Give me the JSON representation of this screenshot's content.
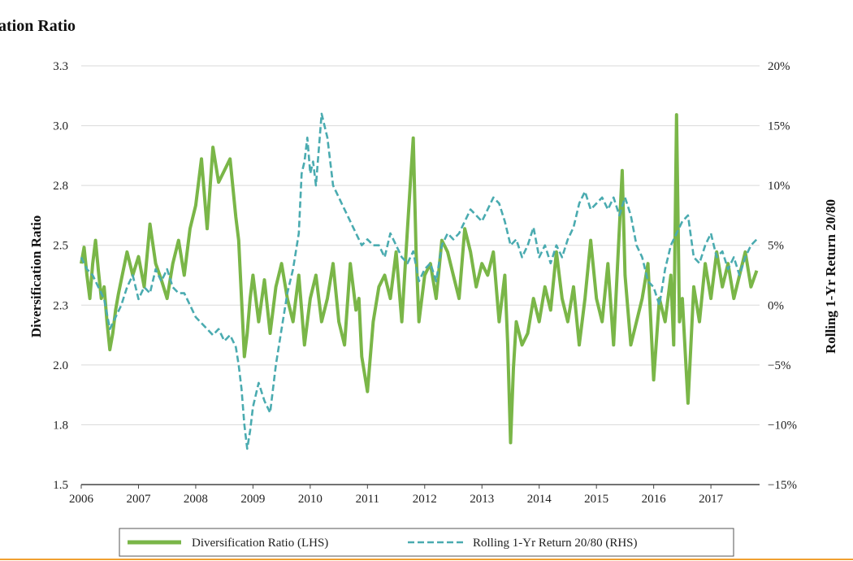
{
  "chart_data": {
    "type": "line",
    "title": "ation Ratio",
    "ylabel_left": "Diversification Ratio",
    "ylabel_right": "Rolling 1-Yr Return 20/80",
    "x_ticks": [
      "2006",
      "2007",
      "2008",
      "2009",
      "2010",
      "2011",
      "2012",
      "2013",
      "2014",
      "2015",
      "2016",
      "2017"
    ],
    "x_range": [
      2006.0,
      2017.85
    ],
    "y_left_ticks": [
      "3.3",
      "3.0",
      "2.8",
      "2.5",
      "2.3",
      "2.0",
      "1.8",
      "1.5"
    ],
    "y_left_range": [
      1.5,
      3.3
    ],
    "y_right_ticks": [
      "20%",
      "15%",
      "10%",
      "5%",
      "0%",
      "−5%",
      "−10%",
      "−15%"
    ],
    "y_right_range": [
      -15,
      20
    ],
    "grid": "horizontal",
    "legend_position": "bottom",
    "colors": {
      "diversification": "#7ab648",
      "rolling": "#4aabb0",
      "grid": "#d9d9d9",
      "footer_line": "#f0a030"
    },
    "series": [
      {
        "name": "Diversification Ratio (LHS)",
        "axis": "left",
        "style": "solid",
        "x": [
          2006.0,
          2006.05,
          2006.1,
          2006.15,
          2006.2,
          2006.25,
          2006.3,
          2006.35,
          2006.4,
          2006.45,
          2006.5,
          2006.55,
          2006.6,
          2006.65,
          2006.7,
          2006.8,
          2006.9,
          2007.0,
          2007.1,
          2007.2,
          2007.3,
          2007.4,
          2007.5,
          2007.6,
          2007.7,
          2007.8,
          2007.9,
          2008.0,
          2008.1,
          2008.2,
          2008.3,
          2008.4,
          2008.5,
          2008.6,
          2008.7,
          2008.75,
          2008.8,
          2008.85,
          2008.9,
          2008.95,
          2009.0,
          2009.1,
          2009.2,
          2009.3,
          2009.4,
          2009.5,
          2009.6,
          2009.7,
          2009.8,
          2009.9,
          2010.0,
          2010.1,
          2010.2,
          2010.3,
          2010.4,
          2010.5,
          2010.6,
          2010.7,
          2010.75,
          2010.8,
          2010.85,
          2010.9,
          2011.0,
          2011.1,
          2011.2,
          2011.3,
          2011.4,
          2011.5,
          2011.6,
          2011.7,
          2011.75,
          2011.8,
          2011.85,
          2011.9,
          2012.0,
          2012.1,
          2012.2,
          2012.3,
          2012.4,
          2012.5,
          2012.6,
          2012.7,
          2012.8,
          2012.9,
          2013.0,
          2013.1,
          2013.2,
          2013.3,
          2013.4,
          2013.45,
          2013.5,
          2013.55,
          2013.6,
          2013.7,
          2013.8,
          2013.9,
          2014.0,
          2014.1,
          2014.2,
          2014.3,
          2014.4,
          2014.5,
          2014.6,
          2014.7,
          2014.8,
          2014.9,
          2015.0,
          2015.1,
          2015.2,
          2015.3,
          2015.4,
          2015.45,
          2015.5,
          2015.6,
          2015.7,
          2015.8,
          2015.9,
          2016.0,
          2016.1,
          2016.2,
          2016.3,
          2016.35,
          2016.4,
          2016.45,
          2016.5,
          2016.6,
          2016.7,
          2016.8,
          2016.9,
          2017.0,
          2017.1,
          2017.2,
          2017.3,
          2017.4,
          2017.5,
          2017.6,
          2017.7,
          2017.8
        ],
        "y": [
          2.45,
          2.52,
          2.4,
          2.3,
          2.45,
          2.55,
          2.42,
          2.3,
          2.35,
          2.2,
          2.08,
          2.15,
          2.25,
          2.32,
          2.38,
          2.5,
          2.4,
          2.48,
          2.35,
          2.62,
          2.45,
          2.38,
          2.3,
          2.45,
          2.55,
          2.4,
          2.6,
          2.7,
          2.9,
          2.6,
          2.95,
          2.8,
          2.85,
          2.9,
          2.65,
          2.55,
          2.3,
          2.05,
          2.15,
          2.3,
          2.4,
          2.2,
          2.38,
          2.15,
          2.35,
          2.45,
          2.3,
          2.2,
          2.4,
          2.1,
          2.3,
          2.4,
          2.2,
          2.3,
          2.45,
          2.2,
          2.1,
          2.45,
          2.35,
          2.25,
          2.3,
          2.05,
          1.9,
          2.2,
          2.35,
          2.4,
          2.3,
          2.5,
          2.2,
          2.6,
          2.8,
          2.99,
          2.5,
          2.2,
          2.4,
          2.45,
          2.3,
          2.55,
          2.5,
          2.4,
          2.3,
          2.6,
          2.5,
          2.35,
          2.45,
          2.4,
          2.5,
          2.2,
          2.4,
          2.1,
          1.68,
          2.0,
          2.2,
          2.1,
          2.15,
          2.3,
          2.2,
          2.35,
          2.25,
          2.5,
          2.3,
          2.2,
          2.35,
          2.1,
          2.3,
          2.55,
          2.3,
          2.2,
          2.45,
          2.1,
          2.6,
          2.85,
          2.4,
          2.1,
          2.2,
          2.3,
          2.45,
          1.95,
          2.3,
          2.2,
          2.4,
          2.1,
          3.09,
          2.2,
          2.3,
          1.85,
          2.35,
          2.2,
          2.45,
          2.3,
          2.5,
          2.35,
          2.45,
          2.3,
          2.4,
          2.5,
          2.35,
          2.42
        ]
      },
      {
        "name": "Rolling 1-Yr Return 20/80 (RHS)",
        "axis": "right",
        "style": "dashed",
        "x": [
          2006.0,
          2006.1,
          2006.2,
          2006.3,
          2006.4,
          2006.5,
          2006.6,
          2006.7,
          2006.8,
          2006.9,
          2007.0,
          2007.1,
          2007.2,
          2007.3,
          2007.4,
          2007.5,
          2007.6,
          2007.7,
          2007.8,
          2007.9,
          2008.0,
          2008.1,
          2008.2,
          2008.3,
          2008.4,
          2008.5,
          2008.6,
          2008.7,
          2008.75,
          2008.8,
          2008.85,
          2008.9,
          2008.95,
          2009.0,
          2009.1,
          2009.2,
          2009.3,
          2009.4,
          2009.5,
          2009.6,
          2009.7,
          2009.8,
          2009.85,
          2009.9,
          2009.95,
          2010.0,
          2010.05,
          2010.1,
          2010.15,
          2010.2,
          2010.3,
          2010.4,
          2010.5,
          2010.6,
          2010.7,
          2010.8,
          2010.9,
          2011.0,
          2011.1,
          2011.2,
          2011.3,
          2011.4,
          2011.5,
          2011.6,
          2011.7,
          2011.8,
          2011.9,
          2012.0,
          2012.1,
          2012.2,
          2012.3,
          2012.4,
          2012.5,
          2012.6,
          2012.7,
          2012.8,
          2012.9,
          2013.0,
          2013.1,
          2013.2,
          2013.3,
          2013.4,
          2013.5,
          2013.6,
          2013.7,
          2013.8,
          2013.9,
          2014.0,
          2014.1,
          2014.2,
          2014.3,
          2014.4,
          2014.5,
          2014.6,
          2014.7,
          2014.8,
          2014.9,
          2015.0,
          2015.1,
          2015.2,
          2015.3,
          2015.4,
          2015.5,
          2015.6,
          2015.7,
          2015.8,
          2015.9,
          2016.0,
          2016.1,
          2016.2,
          2016.3,
          2016.4,
          2016.5,
          2016.6,
          2016.7,
          2016.8,
          2016.9,
          2017.0,
          2017.1,
          2017.2,
          2017.3,
          2017.4,
          2017.5,
          2017.6,
          2017.7,
          2017.8
        ],
        "y": [
          4.0,
          3.0,
          2.5,
          1.5,
          0.5,
          -2.0,
          -1.0,
          0.0,
          1.5,
          2.5,
          0.5,
          1.5,
          1.0,
          3.0,
          2.0,
          3.0,
          1.5,
          1.0,
          1.0,
          0.0,
          -1.0,
          -1.5,
          -2.0,
          -2.5,
          -2.0,
          -3.0,
          -2.5,
          -3.5,
          -5.0,
          -7.0,
          -10.0,
          -12.0,
          -10.5,
          -8.5,
          -6.5,
          -8.0,
          -9.0,
          -5.0,
          -2.0,
          1.0,
          3.0,
          6.0,
          11.0,
          12.0,
          14.0,
          11.0,
          12.0,
          10.0,
          13.0,
          16.0,
          14.0,
          10.0,
          9.0,
          8.0,
          7.0,
          6.0,
          5.0,
          5.5,
          5.0,
          5.0,
          4.0,
          6.0,
          5.0,
          4.0,
          3.5,
          4.5,
          2.0,
          3.0,
          3.5,
          2.0,
          5.0,
          6.0,
          5.5,
          6.0,
          7.0,
          8.0,
          7.5,
          7.0,
          8.0,
          9.0,
          8.5,
          7.0,
          5.0,
          5.5,
          4.0,
          5.0,
          6.5,
          4.0,
          5.0,
          3.5,
          5.0,
          4.0,
          5.5,
          6.5,
          8.5,
          9.5,
          8.0,
          8.5,
          9.0,
          8.0,
          9.0,
          7.5,
          9.0,
          7.5,
          5.0,
          4.0,
          2.0,
          1.5,
          0.0,
          3.0,
          5.0,
          6.0,
          7.0,
          7.5,
          4.0,
          3.5,
          5.0,
          6.0,
          4.0,
          4.5,
          3.0,
          4.0,
          2.5,
          4.0,
          5.0,
          5.5
        ]
      }
    ]
  }
}
